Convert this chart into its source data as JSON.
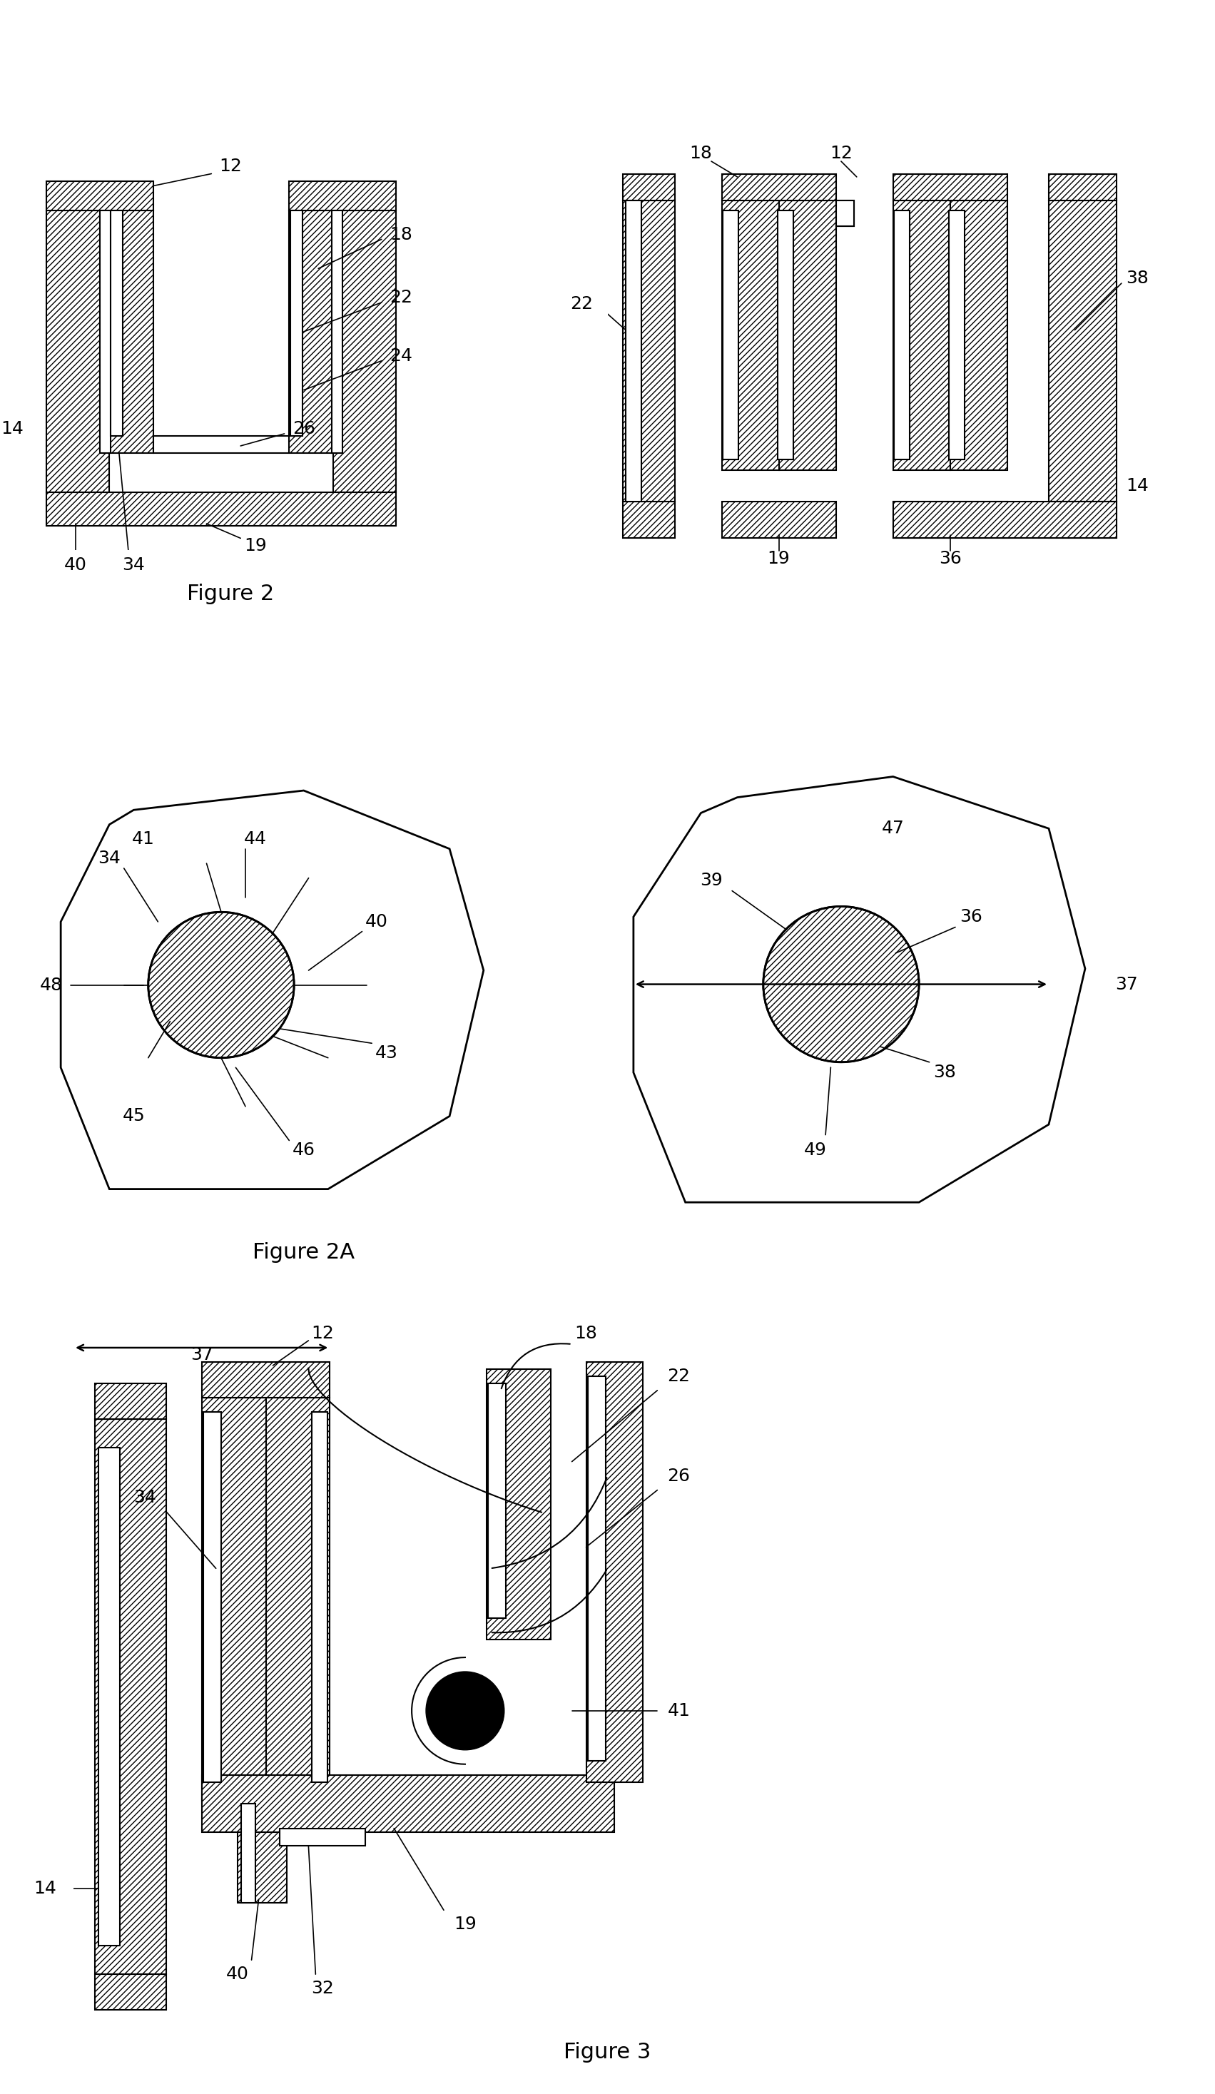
{
  "bg_color": "#ffffff",
  "lw": 2.0,
  "lw_thin": 1.5,
  "fs": 18,
  "ffs": 22,
  "hatch": "////",
  "figures": {
    "fig2_left_label": "Figure 2",
    "fig2a_label": "Figure 2A",
    "fig3_label": "Figure 3"
  }
}
